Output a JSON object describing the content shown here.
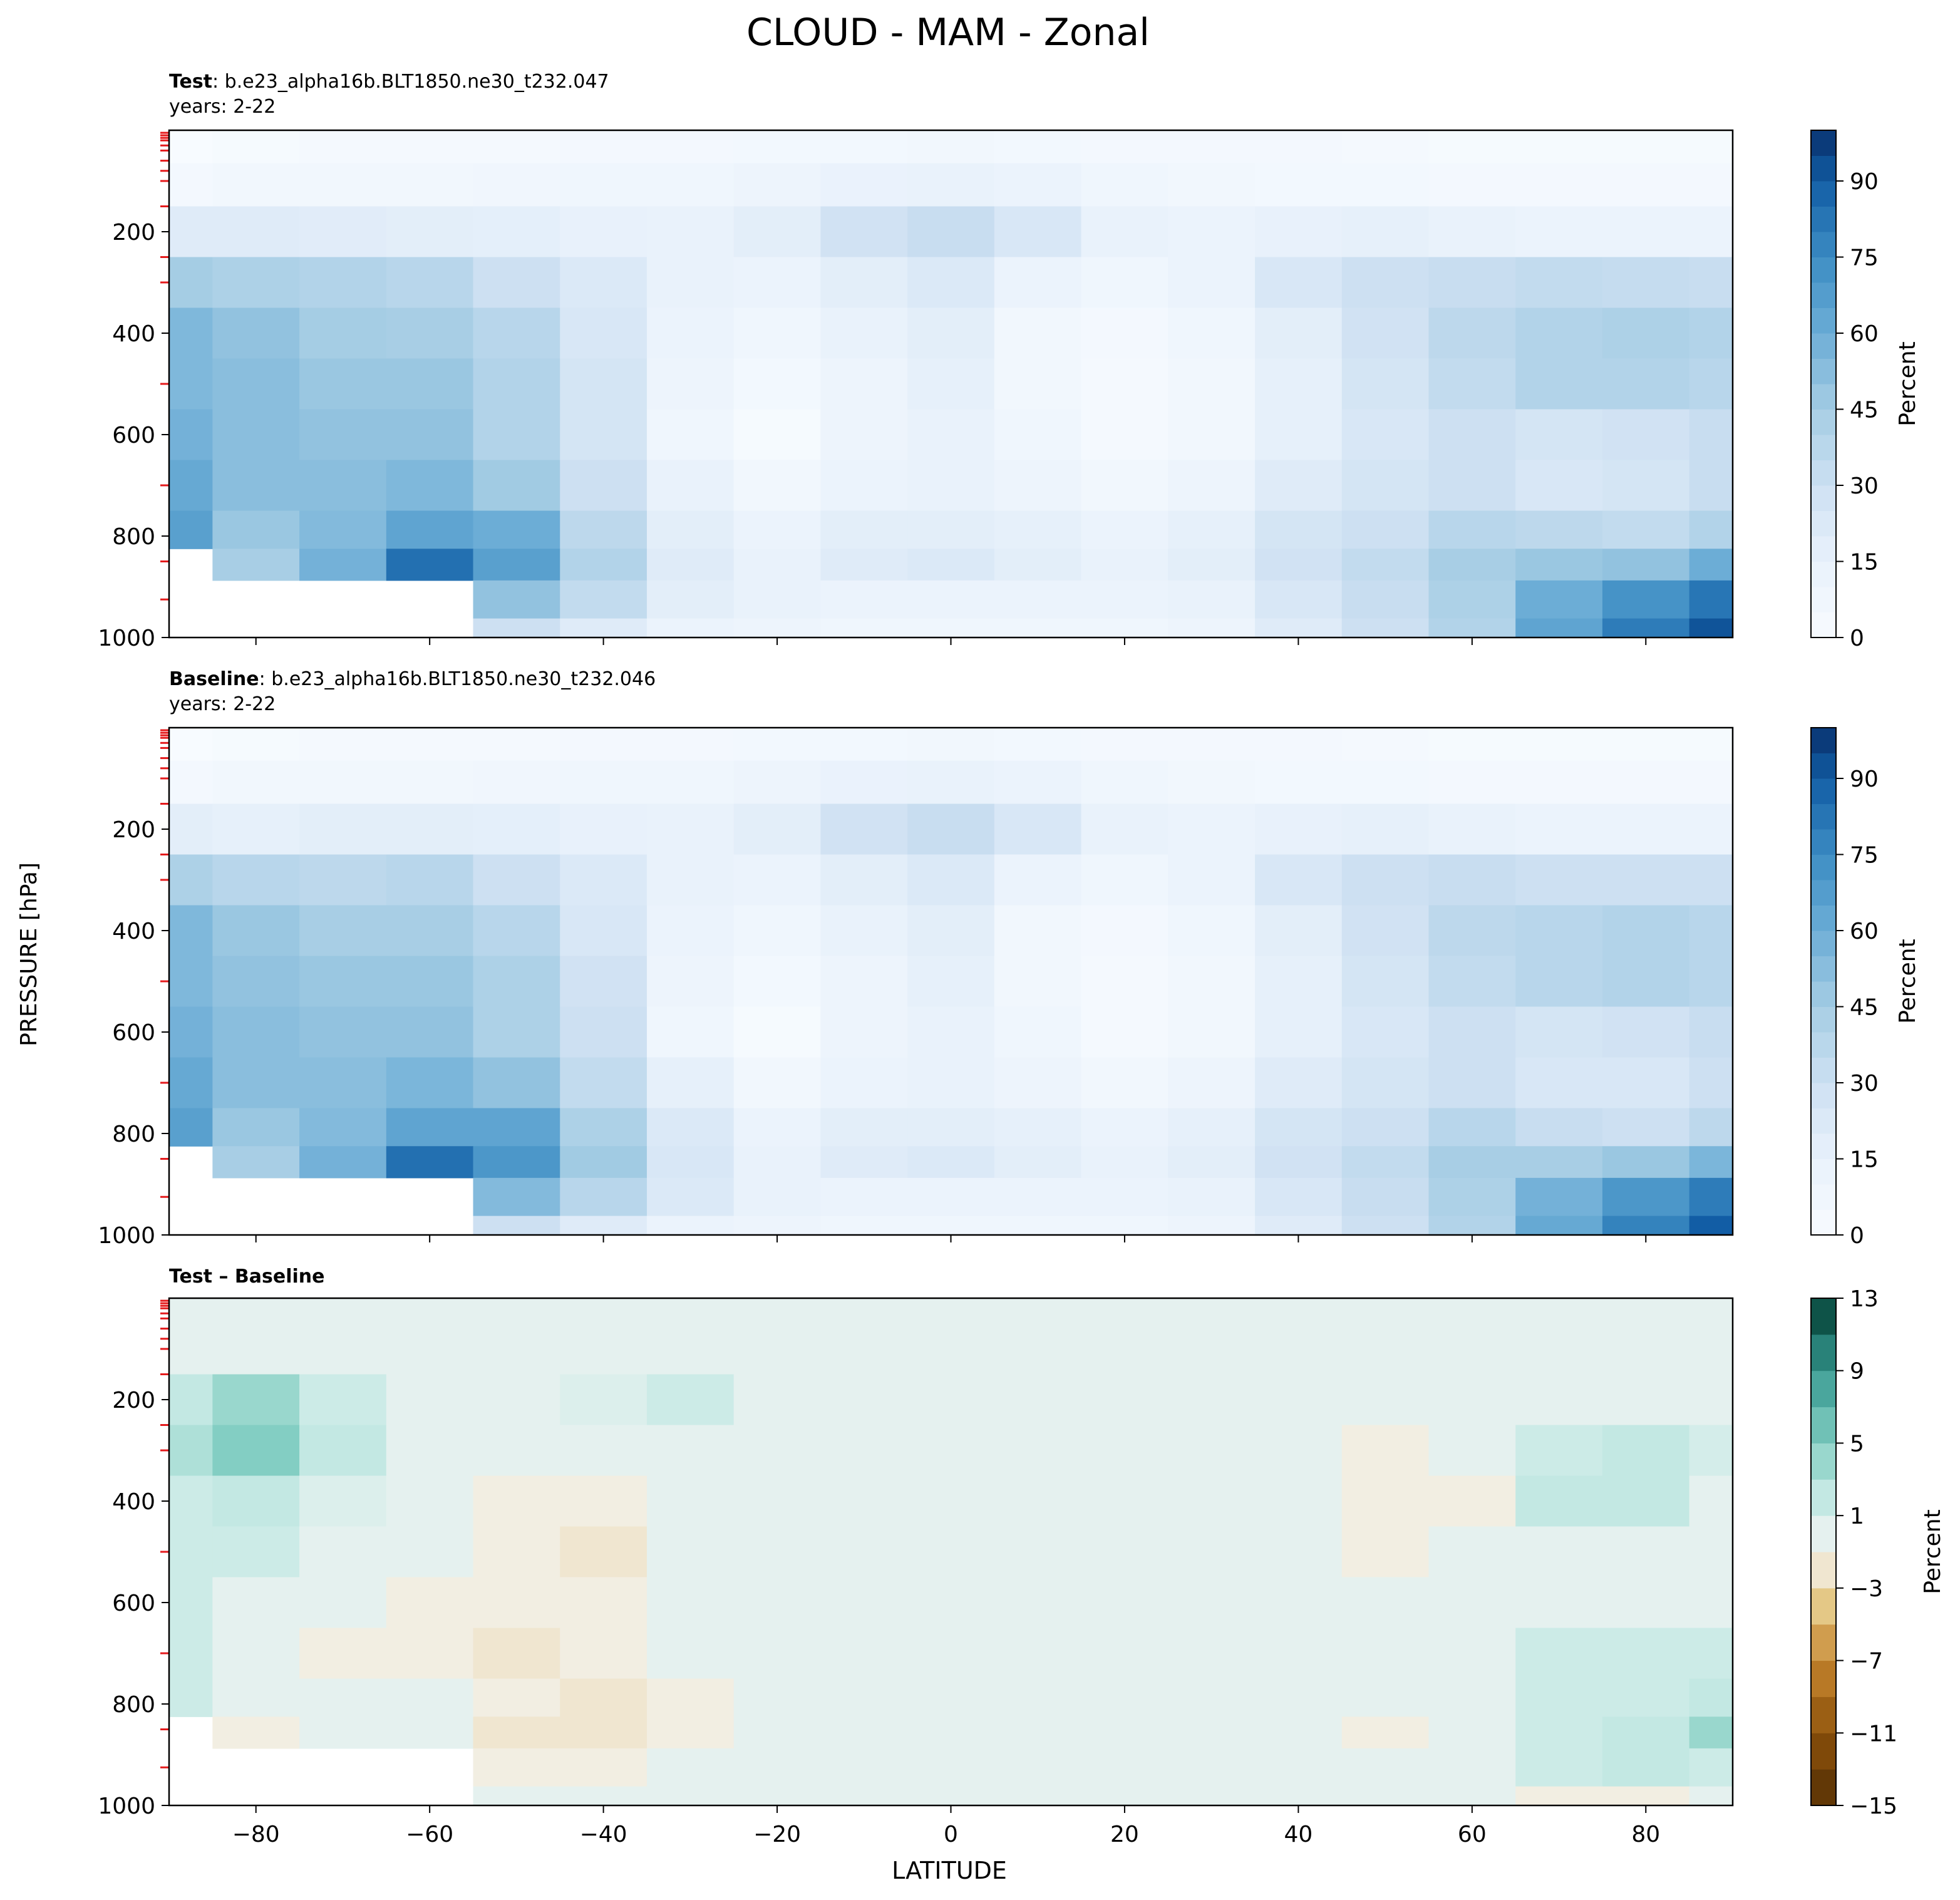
{
  "figure": {
    "suptitle": "CLOUD - MAM - Zonal",
    "ylabel": "PRESSURE [hPa]",
    "xlabel": "LATITUDE"
  },
  "chart_data": [
    {
      "type": "heatmap",
      "panel": "test",
      "title_bold": "Test",
      "title_rest": ": b.e23_alpha16b.BLT1850.ne30_t232.047",
      "subtitle": "years: 2-22",
      "xlim": [
        -90,
        90
      ],
      "ylim": [
        1000,
        0
      ],
      "x_ticks": [
        -80,
        -60,
        -40,
        -20,
        0,
        20,
        40,
        60,
        80
      ],
      "y_ticks": [
        200,
        400,
        600,
        800,
        1000
      ],
      "colormap": "Blues",
      "colorbar": {
        "label": "Percent",
        "range": [
          0,
          100
        ],
        "ticks": [
          0,
          15,
          30,
          45,
          60,
          75,
          90
        ]
      },
      "x": [
        -90,
        -80,
        -70,
        -60,
        -50,
        -40,
        -30,
        -20,
        -10,
        0,
        10,
        20,
        30,
        40,
        50,
        60,
        70,
        80,
        90
      ],
      "y": [
        30,
        100,
        200,
        300,
        400,
        500,
        600,
        700,
        800,
        850,
        925,
        1000
      ],
      "z": [
        [
          0,
          2,
          3,
          3,
          3,
          4,
          4,
          5,
          5,
          6,
          5,
          4,
          4,
          4,
          3,
          2,
          2,
          2,
          2
        ],
        [
          4,
          6,
          6,
          6,
          7,
          8,
          8,
          10,
          13,
          14,
          12,
          8,
          6,
          5,
          5,
          4,
          4,
          4,
          4
        ],
        [
          20,
          20,
          19,
          18,
          17,
          15,
          14,
          18,
          28,
          32,
          24,
          14,
          12,
          15,
          16,
          14,
          12,
          12,
          12
        ],
        [
          45,
          42,
          40,
          38,
          30,
          22,
          14,
          12,
          18,
          22,
          12,
          8,
          12,
          24,
          30,
          32,
          34,
          33,
          32
        ],
        [
          55,
          50,
          45,
          44,
          38,
          24,
          12,
          8,
          14,
          18,
          6,
          4,
          8,
          18,
          28,
          36,
          40,
          42,
          40
        ],
        [
          55,
          52,
          48,
          48,
          40,
          26,
          10,
          5,
          10,
          16,
          6,
          3,
          6,
          16,
          26,
          34,
          40,
          40,
          38
        ],
        [
          58,
          52,
          50,
          50,
          40,
          26,
          8,
          2,
          10,
          14,
          8,
          3,
          6,
          16,
          24,
          30,
          26,
          28,
          32
        ],
        [
          62,
          52,
          52,
          55,
          46,
          30,
          14,
          6,
          12,
          14,
          10,
          6,
          10,
          20,
          26,
          30,
          24,
          26,
          32
        ],
        [
          66,
          48,
          54,
          64,
          60,
          36,
          18,
          12,
          18,
          18,
          16,
          12,
          16,
          26,
          30,
          38,
          36,
          34,
          40
        ],
        [
          null,
          44,
          58,
          84,
          66,
          40,
          20,
          14,
          20,
          22,
          18,
          14,
          18,
          28,
          34,
          44,
          48,
          50,
          60
        ],
        [
          null,
          null,
          null,
          null,
          50,
          34,
          18,
          14,
          12,
          12,
          12,
          12,
          14,
          24,
          32,
          42,
          60,
          72,
          82
        ],
        [
          null,
          null,
          null,
          null,
          30,
          20,
          12,
          10,
          8,
          8,
          8,
          8,
          10,
          20,
          30,
          40,
          64,
          80,
          92
        ]
      ]
    },
    {
      "type": "heatmap",
      "panel": "baseline",
      "title_bold": "Baseline",
      "title_rest": ": b.e23_alpha16b.BLT1850.ne30_t232.046",
      "subtitle": "years: 2-22",
      "xlim": [
        -90,
        90
      ],
      "ylim": [
        1000,
        0
      ],
      "x_ticks": [
        -80,
        -60,
        -40,
        -20,
        0,
        20,
        40,
        60,
        80
      ],
      "y_ticks": [
        200,
        400,
        600,
        800,
        1000
      ],
      "colormap": "Blues",
      "colorbar": {
        "label": "Percent",
        "range": [
          0,
          100
        ],
        "ticks": [
          0,
          15,
          30,
          45,
          60,
          75,
          90
        ]
      },
      "x": [
        -90,
        -80,
        -70,
        -60,
        -50,
        -40,
        -30,
        -20,
        -10,
        0,
        10,
        20,
        30,
        40,
        50,
        60,
        70,
        80,
        90
      ],
      "y": [
        30,
        100,
        200,
        300,
        400,
        500,
        600,
        700,
        800,
        850,
        925,
        1000
      ],
      "z": [
        [
          0,
          2,
          3,
          3,
          3,
          4,
          4,
          5,
          5,
          6,
          5,
          4,
          4,
          4,
          3,
          2,
          2,
          2,
          2
        ],
        [
          4,
          6,
          6,
          6,
          7,
          8,
          8,
          10,
          13,
          14,
          12,
          8,
          6,
          5,
          5,
          4,
          4,
          4,
          4
        ],
        [
          18,
          16,
          18,
          18,
          17,
          15,
          14,
          18,
          28,
          32,
          24,
          14,
          12,
          15,
          16,
          14,
          12,
          12,
          12
        ],
        [
          42,
          38,
          36,
          38,
          30,
          22,
          14,
          12,
          18,
          22,
          12,
          8,
          12,
          24,
          30,
          32,
          30,
          30,
          30
        ],
        [
          55,
          48,
          44,
          44,
          38,
          24,
          12,
          8,
          14,
          18,
          6,
          4,
          8,
          18,
          28,
          36,
          38,
          40,
          38
        ],
        [
          55,
          50,
          48,
          48,
          42,
          28,
          10,
          5,
          10,
          16,
          6,
          3,
          6,
          16,
          26,
          34,
          38,
          40,
          38
        ],
        [
          58,
          52,
          50,
          50,
          42,
          30,
          8,
          2,
          10,
          14,
          8,
          3,
          6,
          16,
          24,
          30,
          26,
          28,
          32
        ],
        [
          62,
          52,
          52,
          56,
          50,
          34,
          16,
          6,
          12,
          14,
          10,
          6,
          10,
          20,
          26,
          30,
          24,
          24,
          30
        ],
        [
          66,
          48,
          54,
          64,
          64,
          42,
          22,
          12,
          18,
          18,
          16,
          12,
          16,
          26,
          30,
          38,
          32,
          30,
          36
        ],
        [
          null,
          44,
          58,
          84,
          70,
          46,
          24,
          14,
          20,
          22,
          18,
          14,
          18,
          28,
          34,
          44,
          44,
          48,
          56
        ],
        [
          null,
          null,
          null,
          null,
          54,
          38,
          22,
          14,
          12,
          12,
          12,
          12,
          14,
          24,
          32,
          42,
          58,
          70,
          80
        ],
        [
          null,
          null,
          null,
          null,
          30,
          20,
          12,
          10,
          8,
          8,
          8,
          8,
          10,
          20,
          30,
          40,
          62,
          78,
          90
        ]
      ]
    },
    {
      "type": "heatmap",
      "panel": "difference",
      "title_bold": "Test",
      "title_sep": " – ",
      "title_bold2": "Baseline",
      "xlim": [
        -90,
        90
      ],
      "ylim": [
        1000,
        0
      ],
      "x_ticks": [
        -80,
        -60,
        -40,
        -20,
        0,
        20,
        40,
        60,
        80
      ],
      "x_ticklabels": [
        "−80",
        "−60",
        "−40",
        "−20",
        "0",
        "20",
        "40",
        "60",
        "80"
      ],
      "y_ticks": [
        200,
        400,
        600,
        800,
        1000
      ],
      "colormap": "BrBG",
      "colorbar": {
        "label": "Percent",
        "boundaries": [
          -15,
          -13,
          -11,
          -9,
          -7,
          -5,
          -3,
          -1,
          1,
          3,
          5,
          7,
          9,
          11,
          13
        ],
        "ticks": [
          -15,
          -11,
          -7,
          -3,
          1,
          5,
          9,
          13
        ],
        "ticklabels": [
          "−15",
          "−11",
          "−7",
          "−3",
          "1",
          "5",
          "9",
          "13"
        ]
      },
      "x": [
        -90,
        -80,
        -70,
        -60,
        -50,
        -40,
        -30,
        -20,
        -10,
        0,
        10,
        20,
        30,
        40,
        50,
        60,
        70,
        80,
        90
      ],
      "y": [
        30,
        100,
        200,
        300,
        400,
        500,
        600,
        700,
        800,
        850,
        925,
        1000
      ],
      "z": [
        [
          0,
          0,
          0,
          0,
          0,
          0,
          0,
          0,
          0,
          0,
          0,
          0,
          0,
          0,
          0,
          0,
          0,
          0,
          0
        ],
        [
          0,
          0,
          0,
          0,
          0,
          0,
          0,
          0,
          0,
          0,
          0,
          0,
          0,
          0,
          0,
          0,
          0,
          0,
          0
        ],
        [
          2,
          4,
          1.5,
          0,
          0,
          0.5,
          1.5,
          0,
          0,
          0,
          0,
          0,
          0,
          0,
          0,
          0,
          0,
          0,
          0
        ],
        [
          3,
          5,
          2,
          0,
          0,
          0,
          0,
          0,
          0,
          0,
          0,
          0,
          0,
          0,
          -1.5,
          0,
          1.5,
          2,
          1
        ],
        [
          1.5,
          2,
          0.5,
          0,
          -1.5,
          -1.5,
          0,
          0,
          0,
          0,
          0,
          0,
          0,
          0,
          -1.5,
          -1.5,
          2,
          2,
          0
        ],
        [
          1.5,
          1.5,
          0,
          0,
          -1.5,
          -2,
          0,
          0,
          0,
          0,
          0,
          0,
          0,
          0,
          -1.5,
          0,
          0,
          0,
          0
        ],
        [
          1.5,
          0,
          0,
          -1.5,
          -1.5,
          -1.5,
          0,
          0,
          0,
          0,
          0,
          0,
          0,
          0,
          0,
          0,
          0,
          0,
          0
        ],
        [
          1.5,
          0,
          -1.5,
          -1.5,
          -2,
          -1.5,
          0,
          0,
          0,
          0,
          0,
          0,
          0,
          0,
          0,
          0,
          1.5,
          1.5,
          1.5
        ],
        [
          1.5,
          0,
          0,
          0,
          -1.5,
          -2,
          -1.5,
          0,
          0,
          0,
          0,
          0,
          0,
          0,
          0,
          0,
          1.5,
          1.5,
          2
        ],
        [
          null,
          -1.5,
          0,
          0,
          -2,
          -2,
          -1.5,
          0,
          0,
          0,
          0,
          0,
          0,
          0,
          -1.5,
          0,
          1.5,
          2,
          4
        ],
        [
          null,
          null,
          null,
          null,
          -1.5,
          -1.5,
          0,
          0,
          0,
          0,
          0,
          0,
          0,
          0,
          0,
          0,
          1.5,
          2,
          1.5
        ],
        [
          null,
          null,
          null,
          null,
          0,
          0,
          0,
          0,
          0,
          0,
          0,
          0,
          0,
          0,
          0,
          0,
          -1.5,
          -1.5,
          0
        ]
      ]
    }
  ]
}
